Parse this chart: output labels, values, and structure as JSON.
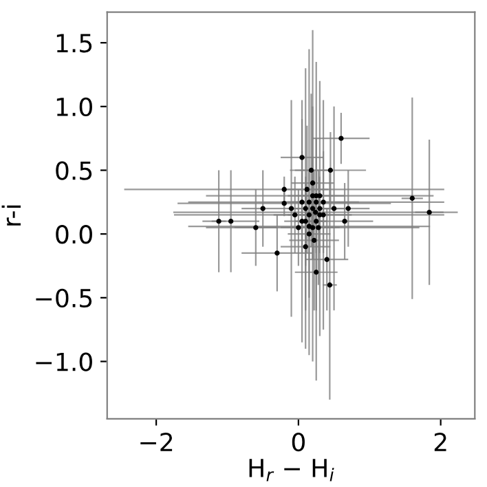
{
  "chart_data": {
    "type": "scatter",
    "xlabel": "H$_{r}$ − H$_{i}$",
    "ylabel": "r-i",
    "x": [
      0.1,
      0.2,
      0.15,
      0.25,
      0.05,
      0.3,
      0.1,
      0.2,
      0.0,
      0.35,
      0.12,
      0.22,
      0.28,
      -0.05,
      0.18,
      0.2,
      0.15,
      0.25,
      0.1,
      0.3,
      0.05,
      0.35,
      0.44,
      -0.1,
      0.5,
      -0.2,
      0.24,
      0.15,
      0.25,
      0.15,
      0.2,
      0.3,
      -0.2,
      1.84,
      1.6,
      -1.12,
      -0.95,
      0.6,
      0.7,
      -0.5,
      -0.6,
      0.45,
      0.65,
      -0.3,
      0.05,
      0.25,
      0.4
    ],
    "values": [
      0.1,
      0.2,
      0.0,
      0.3,
      0.25,
      0.15,
      -0.1,
      0.4,
      0.05,
      0.25,
      0.35,
      -0.05,
      0.05,
      0.15,
      0.5,
      0.3,
      0.25,
      0.1,
      0.2,
      0.2,
      0.1,
      0.15,
      -0.4,
      0.2,
      0.2,
      0.35,
      0.17,
      0.15,
      0.25,
      0.06,
      0.05,
      0.3,
      0.24,
      0.17,
      0.28,
      0.1,
      0.1,
      0.75,
      0.2,
      0.2,
      0.05,
      0.5,
      0.1,
      -0.15,
      0.6,
      -0.3,
      -0.2
    ],
    "xerrors": [
      0.3,
      0.35,
      0.3,
      0.4,
      0.3,
      0.45,
      0.35,
      0.3,
      0.25,
      0.5,
      0.3,
      0.35,
      0.3,
      0.3,
      0.3,
      0.15,
      0.1,
      0.1,
      0.12,
      0.1,
      0.1,
      0.1,
      0.1,
      0.1,
      0.15,
      2.25,
      2.0,
      1.9,
      1.8,
      1.7,
      1.5,
      1.6,
      1.5,
      0.2,
      0.15,
      0.1,
      0.4,
      0.4,
      0.3,
      0.3,
      0.3,
      0.5,
      0.4,
      0.5,
      0.3,
      0.3,
      0.3
    ],
    "errors": [
      0.35,
      0.4,
      0.5,
      0.45,
      0.4,
      0.3,
      0.5,
      0.6,
      0.3,
      0.4,
      0.5,
      0.55,
      0.45,
      0.3,
      0.6,
      1.3,
      1.2,
      1.25,
      1.1,
      1.0,
      0.95,
      0.9,
      0.9,
      0.85,
      0.8,
      0.1,
      0.1,
      0.08,
      0.1,
      0.1,
      0.1,
      0.08,
      0.1,
      0.57,
      0.79,
      0.4,
      0.4,
      0.2,
      0.3,
      0.3,
      0.3,
      0.3,
      0.3,
      0.3,
      0.3,
      0.3,
      0.4
    ],
    "color": "#000000",
    "xlim": [
      -2.69,
      2.48
    ],
    "ylim": [
      -1.45,
      1.74
    ],
    "xticks": [
      {
        "value": -2,
        "label": "−2"
      },
      0,
      2
    ],
    "yticks": [
      {
        "value": -1.0,
        "label": "−1.0"
      },
      {
        "value": -0.5,
        "label": "−0.5"
      },
      {
        "value": 0.0,
        "label": "0.0"
      },
      {
        "value": 0.5,
        "label": "0.5"
      },
      {
        "value": 1.0,
        "label": "1.0"
      },
      {
        "value": 1.5,
        "label": "1.5"
      }
    ],
    "grid": false,
    "marker": "circle"
  }
}
